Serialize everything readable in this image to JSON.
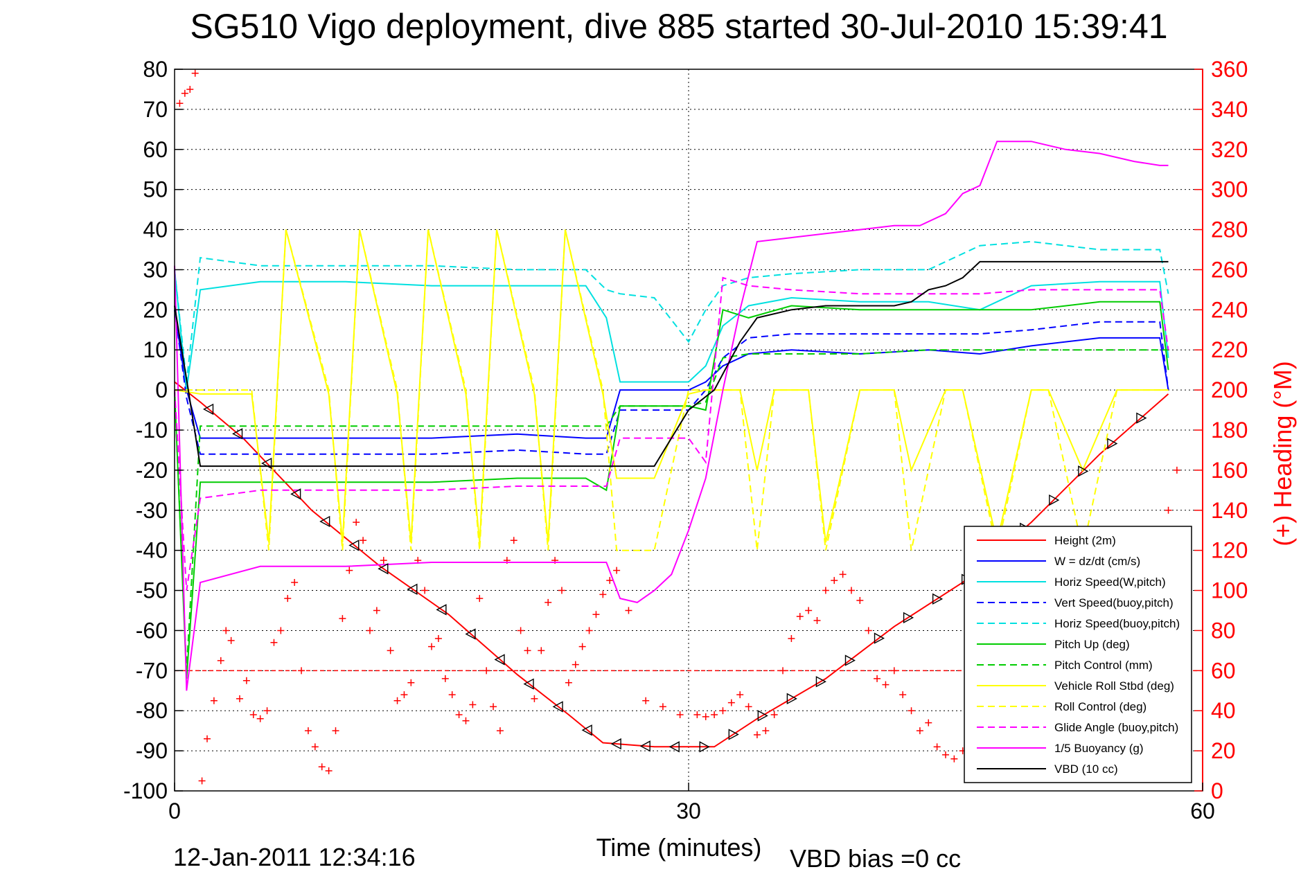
{
  "chart_data": {
    "type": "line",
    "title": "SG510 Vigo deployment, dive 885 started 30-Jul-2010 15:39:41",
    "xlabel": "Time (minutes)",
    "ylabel_right": "(+) Heading (°M)",
    "footer_date": "12-Jan-2011 12:34:16",
    "footer_note": "VBD bias =0 cc",
    "xlim": [
      0,
      60
    ],
    "ylim": [
      -100,
      80
    ],
    "y2lim": [
      0,
      360
    ],
    "xticks": [
      0,
      30,
      60
    ],
    "yticks": [
      -100,
      -90,
      -80,
      -70,
      -60,
      -50,
      -40,
      -30,
      -20,
      -10,
      0,
      10,
      20,
      30,
      40,
      50,
      60,
      70,
      80
    ],
    "y2ticks": [
      0,
      20,
      40,
      60,
      80,
      100,
      120,
      140,
      160,
      180,
      200,
      220,
      240,
      260,
      280,
      300,
      320,
      340,
      360
    ],
    "grid": true,
    "legend_position": "bottom-right",
    "reference_line_y": -70,
    "series": [
      {
        "name": "Height (2m)",
        "color": "#ff0000",
        "style": "solid",
        "x": [
          0,
          1.5,
          4,
          8,
          12,
          16,
          20,
          23,
          25,
          28,
          31.5,
          34,
          38,
          42,
          46,
          50,
          54,
          58
        ],
        "y": [
          2,
          -3,
          -12,
          -30,
          -44,
          -56,
          -71,
          -81,
          -88,
          -89,
          -89,
          -82,
          -72,
          -59,
          -48,
          -33,
          -16,
          -1
        ]
      },
      {
        "name": "W = dz/dt (cm/s)",
        "color": "#0000ff",
        "style": "solid",
        "x": [
          0,
          0.7,
          1.5,
          5,
          10,
          15,
          20,
          24,
          25.2,
          26,
          30,
          31,
          32,
          33.5,
          36,
          40,
          44,
          47,
          50,
          54,
          57.5,
          58
        ],
        "y": [
          20,
          0,
          -12,
          -12,
          -12,
          -12,
          -11,
          -12,
          -12,
          0,
          0,
          2,
          6,
          9,
          10,
          9,
          10,
          9,
          11,
          13,
          13,
          0
        ]
      },
      {
        "name": "Horiz Speed(W,pitch)",
        "color": "#00e0e0",
        "style": "solid",
        "x": [
          0,
          0.7,
          1.5,
          5,
          10,
          15,
          20,
          24,
          25.2,
          26,
          30,
          31,
          32,
          33.5,
          36,
          40,
          44,
          47,
          50,
          54,
          57.5,
          58
        ],
        "y": [
          30,
          0,
          25,
          27,
          27,
          26,
          26,
          26,
          18,
          2,
          2,
          6,
          16,
          21,
          23,
          22,
          22,
          20,
          26,
          27,
          27,
          8
        ]
      },
      {
        "name": "Vert Speed(buoy,pitch)",
        "color": "#0000ff",
        "style": "dash",
        "x": [
          0,
          0.7,
          1.5,
          5,
          10,
          15,
          20,
          24,
          25.2,
          26,
          28,
          30,
          31,
          32,
          33.5,
          36,
          40,
          44,
          47,
          50,
          54,
          57.5,
          58
        ],
        "y": [
          20,
          -2,
          -16,
          -16,
          -16,
          -16,
          -15,
          -16,
          -16,
          -5,
          -5,
          -5,
          0,
          8,
          13,
          14,
          14,
          14,
          14,
          15,
          17,
          17,
          0
        ]
      },
      {
        "name": "Horiz Speed(buoy,pitch)",
        "color": "#00e0e0",
        "style": "dash",
        "x": [
          0,
          0.7,
          1.5,
          5,
          10,
          15,
          20,
          24,
          25.2,
          26,
          28,
          30,
          31,
          32,
          33.5,
          36,
          40,
          44,
          47,
          50,
          54,
          57.5,
          58
        ],
        "y": [
          30,
          2,
          33,
          31,
          31,
          31,
          30,
          30,
          25,
          24,
          23,
          12,
          20,
          26,
          28,
          29,
          30,
          30,
          36,
          37,
          35,
          35,
          24
        ]
      },
      {
        "name": "Pitch Up (deg)",
        "color": "#00cc00",
        "style": "solid",
        "x": [
          0,
          0.7,
          1.5,
          5,
          10,
          15,
          20,
          24,
          25.2,
          26,
          30,
          31,
          32,
          33.5,
          36,
          40,
          44,
          47,
          50,
          54,
          57.5,
          58
        ],
        "y": [
          0,
          -72,
          -23,
          -23,
          -23,
          -23,
          -22,
          -22,
          -25,
          -4,
          -4,
          -5,
          20,
          18,
          21,
          20,
          20,
          20,
          20,
          22,
          22,
          5
        ]
      },
      {
        "name": "Pitch Control (mm)",
        "color": "#00cc00",
        "style": "dash",
        "x": [
          0,
          0.7,
          1.5,
          5,
          10,
          15,
          20,
          24,
          25.2,
          26,
          30,
          31,
          32,
          33.5,
          36,
          40,
          44,
          47,
          50,
          54,
          57.5,
          58
        ],
        "y": [
          0,
          -70,
          -9,
          -9,
          -9,
          -9,
          -9,
          -9,
          -9,
          -4,
          -4,
          -3,
          8,
          9,
          9,
          9,
          10,
          10,
          10,
          10,
          10,
          10
        ]
      },
      {
        "name": "Vehicle Roll Stbd (deg)",
        "color": "#ffff00",
        "style": "solid",
        "x": [
          0,
          1.5,
          2.5,
          4.5,
          5.5,
          6.5,
          9,
          9.8,
          10.8,
          13,
          13.8,
          14.8,
          17,
          17.8,
          18.8,
          21,
          21.8,
          22.8,
          25,
          25.8,
          28,
          30,
          31,
          33,
          34,
          35,
          37,
          38,
          40,
          42,
          43,
          45,
          46,
          48,
          50,
          51,
          53,
          55,
          56,
          58
        ],
        "y": [
          0,
          -1,
          -1,
          -1,
          -38,
          40,
          -1,
          -38,
          40,
          -1,
          -38,
          40,
          -1,
          -38,
          40,
          -1,
          -38,
          40,
          -1,
          -22,
          -22,
          -1,
          0,
          0,
          -20,
          0,
          0,
          -38,
          0,
          0,
          -20,
          0,
          0,
          -38,
          0,
          0,
          -20,
          0,
          0,
          0
        ]
      },
      {
        "name": "Roll Control (deg)",
        "color": "#ffff00",
        "style": "dash",
        "x": [
          0,
          1.5,
          2.5,
          4.5,
          5.5,
          6.5,
          9,
          9.8,
          10.8,
          13,
          13.8,
          14.8,
          17,
          17.8,
          18.8,
          21,
          21.8,
          22.8,
          25,
          25.8,
          28,
          30,
          31,
          33,
          34,
          35,
          37,
          38,
          40,
          42,
          43,
          45,
          46,
          48,
          50,
          51,
          53,
          55,
          56,
          58
        ],
        "y": [
          0,
          0,
          0,
          0,
          -40,
          40,
          0,
          -40,
          40,
          0,
          -40,
          40,
          0,
          -40,
          40,
          0,
          -40,
          40,
          0,
          -40,
          -40,
          0,
          0,
          0,
          -40,
          0,
          0,
          -40,
          0,
          0,
          -40,
          0,
          0,
          -40,
          0,
          0,
          -40,
          0,
          0,
          0
        ]
      },
      {
        "name": "Glide Angle (buoy,pitch)",
        "color": "#ff00ff",
        "style": "dash",
        "x": [
          0,
          0.7,
          1.5,
          5,
          10,
          15,
          20,
          24,
          25.2,
          26,
          30,
          31,
          32,
          33.5,
          36,
          40,
          44,
          47,
          50,
          54,
          57.5,
          58
        ],
        "y": [
          0,
          -50,
          -27,
          -25,
          -25,
          -25,
          -24,
          -24,
          -24,
          -12,
          -12,
          -18,
          28,
          26,
          25,
          24,
          24,
          24,
          25,
          25,
          25,
          10
        ]
      },
      {
        "name": "1/5 Buoyancy (g)",
        "color": "#ff00ff",
        "style": "solid",
        "x": [
          0,
          0.7,
          1.5,
          5,
          10,
          15,
          20,
          25.2,
          26,
          27,
          28,
          29,
          30,
          31,
          32,
          33,
          34,
          36,
          38,
          40,
          42,
          43.5,
          45,
          46,
          47,
          48,
          50,
          52,
          54,
          56,
          57.5,
          58
        ],
        "y": [
          31,
          -75,
          -48,
          -44,
          -44,
          -43,
          -43,
          -43,
          -52,
          -53,
          -50,
          -46,
          -35,
          -22,
          0,
          20,
          37,
          38,
          39,
          40,
          41,
          41,
          44,
          49,
          51,
          62,
          62,
          60,
          59,
          57,
          56,
          56
        ]
      },
      {
        "name": "VBD (10 cc)",
        "color": "#000000",
        "style": "solid",
        "x": [
          0,
          0.8,
          1.5,
          5,
          10,
          15,
          20,
          25,
          28,
          30,
          31.5,
          33,
          34,
          36,
          38,
          40,
          42,
          43,
          44,
          45,
          46,
          47,
          49,
          52,
          55,
          58
        ],
        "y": [
          21,
          0,
          -19,
          -19,
          -19,
          -19,
          -19,
          -19,
          -19,
          -5,
          0,
          12,
          18,
          20,
          21,
          21,
          21,
          22,
          25,
          26,
          28,
          32,
          32,
          32,
          32,
          32
        ]
      }
    ],
    "heading": {
      "name": "(+) Heading (°M)",
      "color": "#ff0000",
      "axis": "right",
      "x": [
        0.3,
        0.6,
        0.9,
        1.2,
        1.6,
        1.9,
        2.3,
        2.7,
        3.0,
        3.3,
        3.8,
        4.2,
        4.6,
        5.0,
        5.4,
        5.8,
        6.2,
        6.6,
        7.0,
        7.4,
        7.8,
        8.2,
        8.6,
        9.0,
        9.4,
        9.8,
        10.2,
        10.6,
        11.0,
        11.4,
        11.8,
        12.2,
        12.6,
        13.0,
        13.4,
        13.8,
        14.2,
        14.6,
        15.0,
        15.4,
        15.8,
        16.2,
        16.6,
        17.0,
        17.4,
        17.8,
        18.2,
        18.6,
        19.0,
        19.4,
        19.8,
        20.2,
        20.6,
        21.0,
        21.4,
        21.8,
        22.2,
        22.6,
        23.0,
        23.4,
        23.8,
        24.2,
        24.6,
        25.0,
        25.4,
        25.8,
        26.5,
        27.5,
        28.5,
        29.5,
        30.5,
        31.0,
        31.5,
        32.0,
        32.5,
        33.0,
        33.5,
        34.0,
        34.5,
        35.0,
        35.5,
        36.0,
        36.5,
        37.0,
        37.5,
        38.0,
        38.5,
        39.0,
        39.5,
        40.0,
        40.5,
        41.0,
        41.5,
        42.0,
        42.5,
        43.0,
        43.5,
        44.0,
        44.5,
        45.0,
        45.5,
        46.0,
        46.5,
        47.0,
        47.5,
        48.0,
        48.5,
        49.0,
        49.5,
        50.0,
        50.5,
        51.0,
        51.5,
        52.0,
        52.5,
        53.0,
        53.5,
        54.0,
        54.5,
        55.0,
        55.5,
        56.0,
        56.5,
        57.0,
        57.5,
        58.0,
        58.5
      ],
      "y": [
        343,
        348,
        350,
        358,
        5,
        26,
        45,
        65,
        80,
        75,
        46,
        55,
        38,
        36,
        40,
        74,
        80,
        96,
        104,
        60,
        30,
        22,
        12,
        10,
        30,
        86,
        110,
        134,
        125,
        80,
        90,
        115,
        70,
        45,
        48,
        54,
        115,
        100,
        72,
        76,
        56,
        48,
        38,
        35,
        43,
        96,
        60,
        42,
        30,
        115,
        125,
        80,
        70,
        46,
        70,
        94,
        115,
        100,
        54,
        63,
        72,
        80,
        88,
        98,
        105,
        110,
        90,
        45,
        42,
        38,
        38,
        37,
        38,
        40,
        44,
        48,
        42,
        28,
        30,
        38,
        60,
        76,
        87,
        90,
        85,
        100,
        105,
        108,
        100,
        95,
        80,
        56,
        53,
        60,
        48,
        40,
        30,
        34,
        22,
        18,
        16,
        20,
        44,
        46,
        53,
        83,
        80,
        76,
        77,
        47,
        42,
        39,
        36,
        33,
        56,
        60,
        62,
        80,
        64,
        62,
        60,
        56,
        56,
        60,
        65,
        140,
        160
      ]
    }
  },
  "legend": {
    "entries": [
      "Height (2m)",
      "W = dz/dt (cm/s)",
      "Horiz Speed(W,pitch)",
      "Vert Speed(buoy,pitch)",
      "Horiz Speed(buoy,pitch)",
      "Pitch Up (deg)",
      "Pitch Control (mm)",
      "Vehicle Roll Stbd (deg)",
      "Roll Control (deg)",
      "Glide Angle (buoy,pitch)",
      "1/5 Buoyancy (g)",
      "VBD (10 cc)"
    ]
  }
}
